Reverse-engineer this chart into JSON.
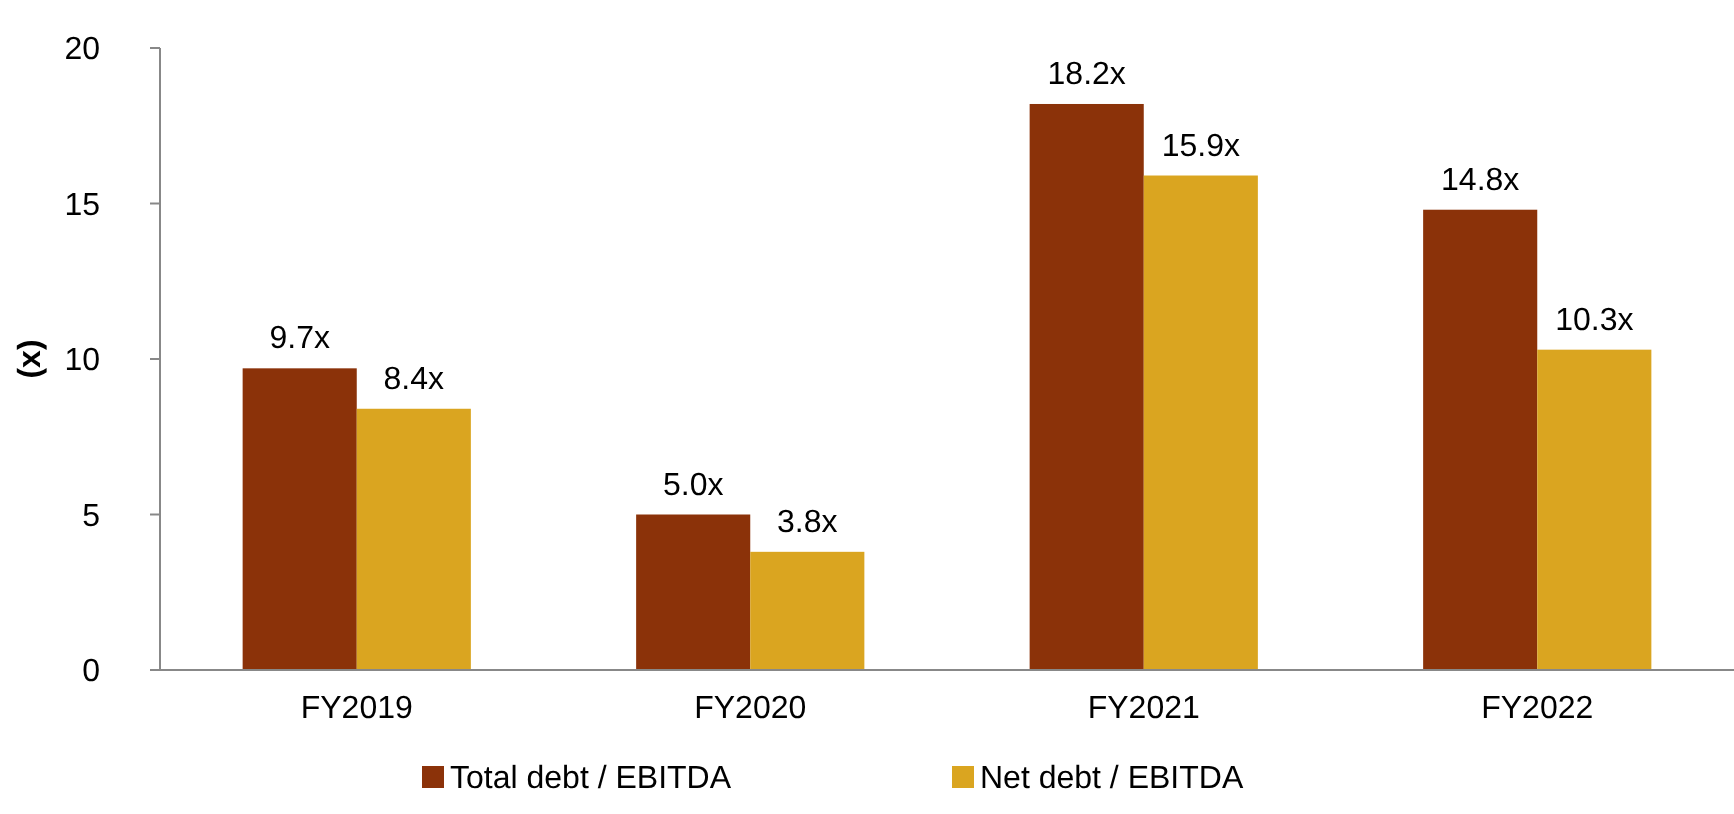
{
  "chart_data": {
    "type": "bar",
    "ylabel": "(x)",
    "categories": [
      "FY2019",
      "FY2020",
      "FY2021",
      "FY2022"
    ],
    "series": [
      {
        "name": "Total debt / EBITDA",
        "color": "#8b3209",
        "values": [
          9.7,
          5.0,
          18.2,
          14.8
        ],
        "value_labels": [
          "9.7x",
          "5.0x",
          "18.2x",
          "14.8x"
        ]
      },
      {
        "name": "Net debt / EBITDA",
        "color": "#daa520",
        "values": [
          8.4,
          3.8,
          15.9,
          10.3
        ],
        "value_labels": [
          "8.4x",
          "3.8x",
          "15.9x",
          "10.3x"
        ]
      }
    ],
    "ylim": [
      0,
      20
    ],
    "yticks": [
      0,
      5,
      10,
      15,
      20
    ],
    "grid": false,
    "legend": "bottom"
  }
}
